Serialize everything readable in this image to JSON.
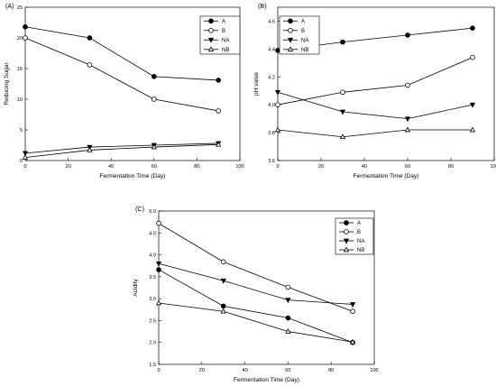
{
  "colors": {
    "line": "#000000",
    "background": "#ffffff",
    "legend_border": "#000000"
  },
  "chart_data": [
    {
      "type": "line",
      "panel_label": "(A)",
      "xlabel": "Fermentation Time (Day)",
      "ylabel": "Reducing Sugar",
      "x": [
        0,
        30,
        60,
        90
      ],
      "xlim": [
        0,
        100
      ],
      "ylim": [
        0,
        25
      ],
      "xticks": [
        "0",
        "20",
        "40",
        "60",
        "80",
        "100"
      ],
      "yticks": [
        "0",
        "5",
        "10",
        "15",
        "20",
        "25"
      ],
      "legend_position": "top-right",
      "grid": false,
      "series": [
        {
          "name": "A",
          "marker": "filled-circle",
          "values": [
            21.8,
            20.0,
            13.7,
            13.1
          ]
        },
        {
          "name": "B",
          "marker": "open-circle",
          "values": [
            20.0,
            15.6,
            10.0,
            8.1
          ]
        },
        {
          "name": "NA",
          "marker": "filled-triangle-down",
          "values": [
            1.2,
            2.2,
            2.5,
            2.8
          ]
        },
        {
          "name": "NB",
          "marker": "open-triangle-up",
          "values": [
            0.5,
            1.7,
            2.2,
            2.6
          ]
        }
      ]
    },
    {
      "type": "line",
      "panel_label": "(B)",
      "xlabel": "Fermentation Time (Day)",
      "ylabel": "pH value",
      "x": [
        0,
        30,
        60,
        90
      ],
      "xlim": [
        0,
        100
      ],
      "ylim": [
        3.6,
        4.7
      ],
      "xticks": [
        "0",
        "20",
        "40",
        "60",
        "80",
        "100"
      ],
      "yticks": [
        "3.6",
        "3.8",
        "4.0",
        "4.2",
        "4.4",
        "4.6"
      ],
      "legend_position": "top-left",
      "grid": false,
      "series": [
        {
          "name": "A",
          "marker": "filled-circle",
          "values": [
            4.39,
            4.45,
            4.5,
            4.55
          ]
        },
        {
          "name": "B",
          "marker": "open-circle",
          "values": [
            4.0,
            4.09,
            4.14,
            4.34
          ]
        },
        {
          "name": "NA",
          "marker": "filled-triangle-down",
          "values": [
            4.09,
            3.95,
            3.9,
            4.0
          ]
        },
        {
          "name": "NB",
          "marker": "open-triangle-up",
          "values": [
            3.82,
            3.77,
            3.82,
            3.82
          ]
        }
      ]
    },
    {
      "type": "line",
      "panel_label": "(C)",
      "xlabel": "Fermentation Time (Day)",
      "ylabel": "Acidity",
      "x": [
        0,
        30,
        60,
        90
      ],
      "xlim": [
        0,
        100
      ],
      "ylim": [
        1.5,
        5.0
      ],
      "xticks": [
        "0",
        "20",
        "40",
        "60",
        "80",
        "100"
      ],
      "yticks": [
        "1.5",
        "2.0",
        "2.5",
        "3.0",
        "3.5",
        "4.0",
        "4.5",
        "5.0"
      ],
      "legend_position": "top-right",
      "grid": false,
      "series": [
        {
          "name": "A",
          "marker": "filled-circle",
          "values": [
            3.66,
            2.83,
            2.56,
            2.0
          ]
        },
        {
          "name": "B",
          "marker": "open-circle",
          "values": [
            4.72,
            3.84,
            3.26,
            2.71
          ]
        },
        {
          "name": "NA",
          "marker": "filled-triangle-down",
          "values": [
            3.8,
            3.41,
            2.97,
            2.87
          ]
        },
        {
          "name": "NB",
          "marker": "open-triangle-up",
          "values": [
            2.9,
            2.71,
            2.25,
            2.01
          ]
        }
      ]
    }
  ]
}
